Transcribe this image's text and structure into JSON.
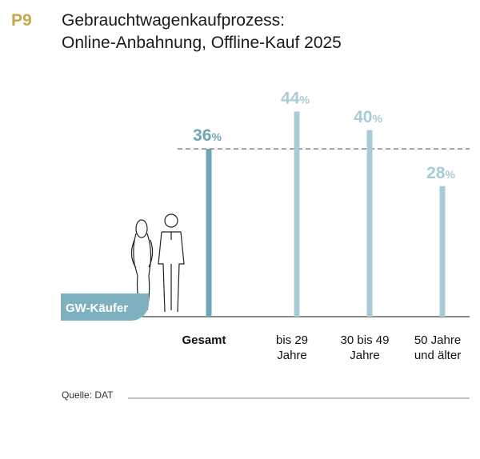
{
  "header": {
    "tag": "P9",
    "title_line1": "Gebrauchtwagenkaufprozess:",
    "title_line2": "Online-Anbahnung, Offline-Kauf 2025"
  },
  "badge": "GW-Käufer",
  "source": "Quelle: DAT",
  "colors": {
    "highlight": "#6fa6b5",
    "bar": "#a9cbd6",
    "accent": "#c8a84a"
  },
  "chart_data": {
    "type": "bar",
    "categories": [
      [
        "Gesamt"
      ],
      [
        "bis 29",
        "Jahre"
      ],
      [
        "30 bis 49",
        "Jahre"
      ],
      [
        "50 Jahre",
        "und älter"
      ]
    ],
    "values": [
      36,
      44,
      40,
      28
    ],
    "unit": "%",
    "reference_line": 36,
    "ylim": [
      0,
      50
    ],
    "grid": false
  }
}
